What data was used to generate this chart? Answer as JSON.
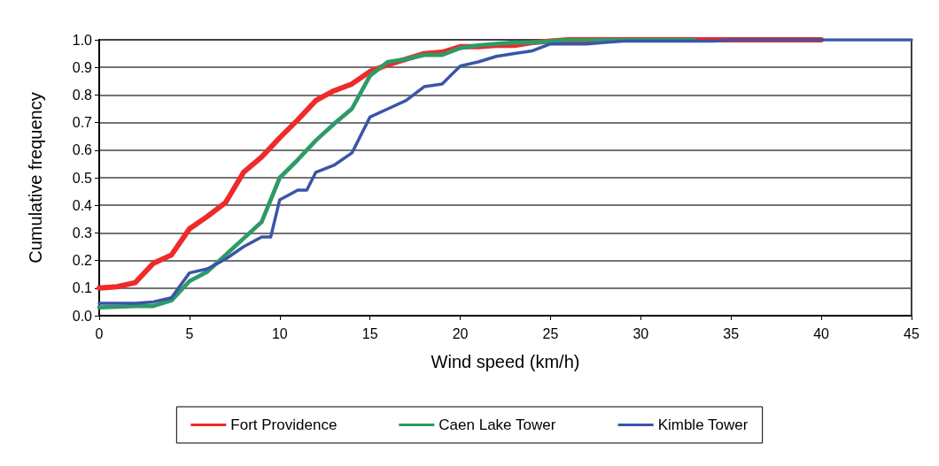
{
  "chart_data": {
    "type": "line",
    "xlabel": "Wind speed (km/h)",
    "ylabel": "Cumulative frequency",
    "xlim": [
      0,
      45
    ],
    "xticks": [
      0,
      5,
      10,
      15,
      20,
      25,
      30,
      35,
      40,
      45
    ],
    "ylim": [
      0,
      1
    ],
    "yticks": [
      {
        "value": 0,
        "label": "0.0"
      },
      {
        "value": 0.1,
        "label": "0.1"
      },
      {
        "value": 0.2,
        "label": "0.2"
      },
      {
        "value": 0.3,
        "label": "0.3"
      },
      {
        "value": 0.4,
        "label": "0.4"
      },
      {
        "value": 0.5,
        "label": "0.5"
      },
      {
        "value": 0.6,
        "label": "0.6"
      },
      {
        "value": 0.7,
        "label": "0.7"
      },
      {
        "value": 0.8,
        "label": "0.8"
      },
      {
        "value": 0.9,
        "label": "0.9"
      },
      {
        "value": 1,
        "label": "1.0"
      }
    ],
    "grid": "y",
    "legend": "bottom",
    "marker": "none",
    "line_style": "solid",
    "series": [
      {
        "name": "Fort Providence",
        "color": "#ee2a2a",
        "x": [
          0,
          1,
          2,
          3,
          4,
          5,
          6,
          7,
          8,
          9,
          10,
          11,
          12,
          13,
          14,
          15,
          16,
          17,
          18,
          19,
          20,
          21,
          22,
          23,
          24,
          25,
          26,
          30,
          35,
          40
        ],
        "values": [
          0.1,
          0.105,
          0.12,
          0.19,
          0.22,
          0.315,
          0.36,
          0.41,
          0.52,
          0.575,
          0.645,
          0.71,
          0.78,
          0.815,
          0.84,
          0.885,
          0.91,
          0.93,
          0.95,
          0.955,
          0.975,
          0.975,
          0.98,
          0.98,
          0.99,
          0.995,
          1,
          1,
          1,
          1
        ]
      },
      {
        "name": "Caen Lake Tower",
        "color": "#2e9a68",
        "x": [
          0,
          1,
          2,
          3,
          4,
          5,
          6,
          7,
          8,
          9,
          10,
          11,
          12,
          13,
          14,
          15,
          16,
          17,
          18,
          19,
          20,
          21,
          22,
          23,
          24,
          25,
          26,
          30,
          33
        ],
        "values": [
          0.03,
          0.032,
          0.035,
          0.035,
          0.055,
          0.125,
          0.16,
          0.22,
          0.28,
          0.34,
          0.5,
          0.565,
          0.635,
          0.695,
          0.75,
          0.87,
          0.92,
          0.93,
          0.945,
          0.945,
          0.97,
          0.98,
          0.985,
          0.99,
          0.99,
          0.995,
          1,
          1,
          1
        ]
      },
      {
        "name": "Kimble Tower",
        "color": "#3a55a8",
        "x": [
          0,
          1,
          2,
          3,
          4,
          5,
          6,
          7,
          8,
          9,
          9.5,
          10,
          11,
          11.5,
          12,
          13,
          14,
          15,
          16,
          17,
          18,
          19,
          20,
          21,
          22,
          23,
          24,
          25,
          26,
          27,
          28,
          29,
          30,
          32,
          34,
          35,
          40,
          45
        ],
        "values": [
          0.045,
          0.045,
          0.045,
          0.05,
          0.065,
          0.155,
          0.17,
          0.205,
          0.25,
          0.285,
          0.285,
          0.42,
          0.455,
          0.455,
          0.52,
          0.545,
          0.59,
          0.72,
          0.75,
          0.78,
          0.83,
          0.84,
          0.905,
          0.92,
          0.94,
          0.95,
          0.96,
          0.985,
          0.985,
          0.985,
          0.99,
          0.995,
          0.995,
          0.995,
          0.995,
          1,
          1,
          1
        ]
      }
    ]
  }
}
